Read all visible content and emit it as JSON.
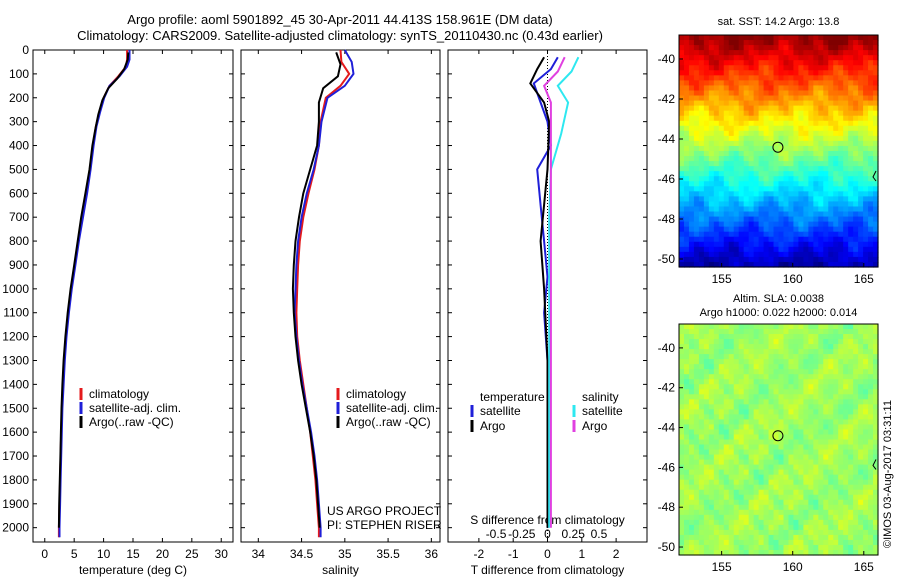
{
  "header": {
    "title_line1": "Argo profile: aoml 5901892_45 30-Apr-2011 44.413S 158.961E (DM data)",
    "title_line2": "Climatology: CARS2009. Satellite-adjusted climatology: synTS_20110430.nc (0.43d earlier)"
  },
  "colors": {
    "climatology": "#e41a1c",
    "satellite": "#1f1fd8",
    "argo": "#000000",
    "sal_satellite": "#2ee8f0",
    "sal_argo": "#e040e0"
  },
  "credits": {
    "project": "US ARGO PROJECT",
    "pi": "PI: STEPHEN RISER",
    "stamp": "©IMOS 03-Aug-2017 03:31:11"
  },
  "chart_data": [
    {
      "type": "line",
      "title": "",
      "xlabel": "temperature (deg C)",
      "ylabel": "",
      "xlim": [
        -2,
        32
      ],
      "ylim": [
        2060,
        0
      ],
      "x_ticks": [
        0,
        5,
        10,
        15,
        20,
        25,
        30
      ],
      "y_ticks": [
        0,
        100,
        200,
        300,
        400,
        500,
        600,
        700,
        800,
        900,
        1000,
        1100,
        1200,
        1300,
        1400,
        1500,
        1600,
        1700,
        1800,
        1900,
        2000
      ],
      "legend": [
        "climatology",
        "satellite-adj. clim.",
        "Argo(..raw -QC)"
      ],
      "series": [
        {
          "name": "climatology",
          "values": [
            [
              14,
              0
            ],
            [
              14,
              40
            ],
            [
              13.8,
              70
            ],
            [
              12.5,
              110
            ],
            [
              11,
              150
            ],
            [
              10,
              200
            ],
            [
              9.3,
              260
            ],
            [
              8.7,
              320
            ],
            [
              8.2,
              400
            ],
            [
              7.7,
              500
            ],
            [
              7,
              600
            ],
            [
              6.3,
              700
            ],
            [
              5.7,
              800
            ],
            [
              5.1,
              900
            ],
            [
              4.5,
              1000
            ],
            [
              4,
              1100
            ],
            [
              3.6,
              1200
            ],
            [
              3.3,
              1300
            ],
            [
              3.1,
              1400
            ],
            [
              2.9,
              1500
            ],
            [
              2.8,
              1600
            ],
            [
              2.7,
              1700
            ],
            [
              2.6,
              1800
            ],
            [
              2.5,
              1900
            ],
            [
              2.4,
              2000
            ],
            [
              2.4,
              2040
            ]
          ]
        },
        {
          "name": "satellite-adj. clim.",
          "values": [
            [
              14.4,
              0
            ],
            [
              14.4,
              40
            ],
            [
              14,
              70
            ],
            [
              12.7,
              110
            ],
            [
              11,
              150
            ],
            [
              10.1,
              200
            ],
            [
              9.4,
              260
            ],
            [
              8.8,
              320
            ],
            [
              8.3,
              400
            ],
            [
              7.8,
              500
            ],
            [
              7.2,
              600
            ],
            [
              6.5,
              700
            ],
            [
              5.8,
              800
            ],
            [
              5.2,
              900
            ],
            [
              4.6,
              1000
            ],
            [
              4.1,
              1100
            ],
            [
              3.7,
              1200
            ],
            [
              3.4,
              1300
            ],
            [
              3.2,
              1400
            ],
            [
              3,
              1500
            ],
            [
              2.9,
              1600
            ],
            [
              2.8,
              1700
            ],
            [
              2.7,
              1800
            ],
            [
              2.6,
              1900
            ],
            [
              2.5,
              2000
            ],
            [
              2.5,
              2040
            ]
          ]
        },
        {
          "name": "Argo(..raw -QC)",
          "values": [
            [
              14.2,
              10
            ],
            [
              14.1,
              40
            ],
            [
              13.5,
              80
            ],
            [
              12.3,
              120
            ],
            [
              10.8,
              160
            ],
            [
              9.8,
              210
            ],
            [
              9.1,
              270
            ],
            [
              8.6,
              330
            ],
            [
              8.1,
              400
            ],
            [
              7.6,
              500
            ],
            [
              6.9,
              600
            ],
            [
              6.2,
              700
            ],
            [
              5.6,
              800
            ],
            [
              5,
              900
            ],
            [
              4.4,
              1000
            ],
            [
              3.9,
              1100
            ],
            [
              3.5,
              1200
            ],
            [
              3.2,
              1300
            ],
            [
              3,
              1400
            ],
            [
              2.85,
              1500
            ],
            [
              2.75,
              1600
            ],
            [
              2.65,
              1700
            ],
            [
              2.55,
              1800
            ],
            [
              2.45,
              1900
            ],
            [
              2.4,
              2000
            ]
          ]
        }
      ]
    },
    {
      "type": "line",
      "title": "",
      "xlabel": "salinity",
      "ylabel": "",
      "xlim": [
        33.8,
        36.1
      ],
      "ylim": [
        2060,
        0
      ],
      "x_ticks": [
        34,
        34.5,
        35,
        35.5,
        36
      ],
      "legend": [
        "climatology",
        "satellite-adj. clim.",
        "Argo(..raw -QC)"
      ],
      "series": [
        {
          "name": "climatology",
          "values": [
            [
              34.95,
              0
            ],
            [
              34.96,
              50
            ],
            [
              35.05,
              100
            ],
            [
              34.95,
              150
            ],
            [
              34.78,
              200
            ],
            [
              34.72,
              300
            ],
            [
              34.7,
              400
            ],
            [
              34.65,
              500
            ],
            [
              34.58,
              600
            ],
            [
              34.52,
              700
            ],
            [
              34.48,
              800
            ],
            [
              34.46,
              900
            ],
            [
              34.45,
              1000
            ],
            [
              34.44,
              1100
            ],
            [
              34.45,
              1200
            ],
            [
              34.48,
              1300
            ],
            [
              34.52,
              1400
            ],
            [
              34.56,
              1500
            ],
            [
              34.6,
              1600
            ],
            [
              34.63,
              1700
            ],
            [
              34.66,
              1800
            ],
            [
              34.68,
              1900
            ],
            [
              34.7,
              2000
            ],
            [
              34.7,
              2040
            ]
          ]
        },
        {
          "name": "satellite-adj. clim.",
          "values": [
            [
              35,
              0
            ],
            [
              35.08,
              50
            ],
            [
              35.1,
              100
            ],
            [
              35,
              150
            ],
            [
              34.8,
              200
            ],
            [
              34.73,
              300
            ],
            [
              34.7,
              400
            ],
            [
              34.64,
              500
            ],
            [
              34.56,
              600
            ],
            [
              34.5,
              700
            ],
            [
              34.46,
              800
            ],
            [
              34.44,
              900
            ],
            [
              34.43,
              1000
            ],
            [
              34.42,
              1100
            ],
            [
              34.44,
              1200
            ],
            [
              34.47,
              1300
            ],
            [
              34.51,
              1400
            ],
            [
              34.56,
              1500
            ],
            [
              34.61,
              1600
            ],
            [
              34.65,
              1700
            ],
            [
              34.68,
              1800
            ],
            [
              34.7,
              1900
            ],
            [
              34.72,
              2000
            ],
            [
              34.72,
              2040
            ]
          ]
        },
        {
          "name": "Argo(..raw -QC)",
          "values": [
            [
              34.9,
              10
            ],
            [
              34.95,
              60
            ],
            [
              34.92,
              110
            ],
            [
              34.75,
              160
            ],
            [
              34.7,
              220
            ],
            [
              34.7,
              300
            ],
            [
              34.68,
              400
            ],
            [
              34.6,
              500
            ],
            [
              34.52,
              600
            ],
            [
              34.47,
              700
            ],
            [
              34.43,
              800
            ],
            [
              34.41,
              900
            ],
            [
              34.4,
              1000
            ],
            [
              34.41,
              1100
            ],
            [
              34.43,
              1200
            ],
            [
              34.46,
              1300
            ],
            [
              34.5,
              1400
            ],
            [
              34.55,
              1500
            ],
            [
              34.6,
              1600
            ],
            [
              34.64,
              1700
            ],
            [
              34.67,
              1800
            ],
            [
              34.69,
              1900
            ],
            [
              34.71,
              2000
            ]
          ]
        }
      ],
      "annotations": [
        "US ARGO PROJECT",
        "PI: STEPHEN RISER"
      ]
    },
    {
      "type": "line",
      "title": "",
      "xlabel": "T difference from climatology",
      "xlabel2": "S difference from climatology",
      "xlim": [
        -2.9,
        2.9
      ],
      "ylim": [
        2060,
        0
      ],
      "x_ticks": [
        -2,
        -1,
        0,
        1,
        2
      ],
      "x_ticks_s": [
        "-0.5",
        "-0.25",
        "0",
        "0.25",
        "0.5"
      ],
      "legend_groups": [
        {
          "title": "temperature",
          "items": [
            "satellite",
            "Argo"
          ]
        },
        {
          "title": "salinity",
          "items": [
            "satellite",
            "Argo"
          ]
        }
      ],
      "series": [
        {
          "name": "temperature satellite",
          "values": [
            [
              0.3,
              30
            ],
            [
              0.1,
              80
            ],
            [
              -0.4,
              140
            ],
            [
              -0.2,
              220
            ],
            [
              0,
              300
            ],
            [
              0.1,
              400
            ],
            [
              -0.3,
              500
            ],
            [
              -0.2,
              650
            ],
            [
              -0.1,
              800
            ],
            [
              0,
              950
            ],
            [
              -0.1,
              1100
            ],
            [
              0,
              1300
            ],
            [
              0,
              1600
            ],
            [
              0,
              2000
            ]
          ]
        },
        {
          "name": "temperature Argo",
          "values": [
            [
              -0.1,
              30
            ],
            [
              -0.3,
              80
            ],
            [
              -0.5,
              140
            ],
            [
              -0.1,
              220
            ],
            [
              0.05,
              300
            ],
            [
              0,
              500
            ],
            [
              -0.2,
              800
            ],
            [
              -0.1,
              1000
            ],
            [
              0,
              1300
            ],
            [
              0,
              1700
            ],
            [
              0,
              2000
            ]
          ]
        },
        {
          "name": "salinity satellite",
          "values": [
            [
              0.9,
              30
            ],
            [
              0.7,
              90
            ],
            [
              0.3,
              150
            ],
            [
              0.6,
              220
            ],
            [
              0.4,
              350
            ],
            [
              0.1,
              500
            ],
            [
              0.05,
              700
            ],
            [
              0.05,
              1000
            ],
            [
              0.05,
              1400
            ],
            [
              0.05,
              2000
            ]
          ]
        },
        {
          "name": "salinity Argo",
          "values": [
            [
              0.5,
              30
            ],
            [
              0.3,
              90
            ],
            [
              -0.1,
              150
            ],
            [
              0.1,
              220
            ],
            [
              0.1,
              400
            ],
            [
              0.1,
              700
            ],
            [
              0.1,
              1100
            ],
            [
              0.1,
              1500
            ],
            [
              0.1,
              2000
            ]
          ]
        }
      ]
    },
    {
      "type": "heatmap",
      "title": "sat. SST: 14.2 Argo: 13.8",
      "xlim": [
        152,
        166
      ],
      "ylim": [
        -50.4,
        -38.8
      ],
      "x_ticks": [
        155,
        160,
        165
      ],
      "y_ticks": [
        -40,
        -42,
        -44,
        -46,
        -48,
        -50
      ],
      "marker": {
        "lon": 158.96,
        "lat": -44.41
      }
    },
    {
      "type": "heatmap",
      "title": "Altim. SLA: 0.0038",
      "subtitle": "Argo h1000: 0.022 h2000: 0.014",
      "xlim": [
        152,
        166
      ],
      "ylim": [
        -50.4,
        -38.8
      ],
      "x_ticks": [
        155,
        160,
        165
      ],
      "y_ticks": [
        -40,
        -42,
        -44,
        -46,
        -48,
        -50
      ],
      "marker": {
        "lon": 158.96,
        "lat": -44.41
      }
    }
  ]
}
